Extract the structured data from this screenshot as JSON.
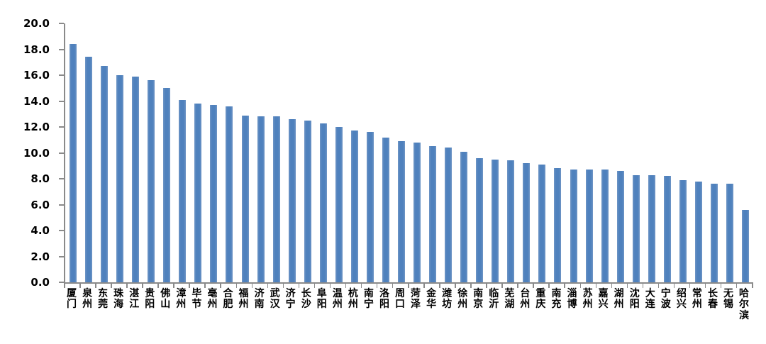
{
  "chart_data": {
    "type": "bar",
    "title": "",
    "xlabel": "",
    "ylabel": "",
    "categories": [
      "厦门",
      "泉州",
      "东莞",
      "珠海",
      "湛江",
      "贵阳",
      "佛山",
      "漳州",
      "毕节",
      "亳州",
      "合肥",
      "福州",
      "济南",
      "武汉",
      "济宁",
      "长沙",
      "阜阳",
      "温州",
      "杭州",
      "南宁",
      "洛阳",
      "周口",
      "菏泽",
      "金华",
      "潍坊",
      "徐州",
      "南京",
      "临沂",
      "芜湖",
      "台州",
      "重庆",
      "南充",
      "淄博",
      "苏州",
      "嘉兴",
      "湖州",
      "沈阳",
      "大连",
      "宁波",
      "绍兴",
      "常州",
      "长春",
      "无锡",
      "哈尔滨"
    ],
    "values": [
      18.4,
      17.4,
      16.7,
      16.0,
      15.9,
      15.6,
      15.0,
      14.1,
      13.8,
      13.7,
      13.6,
      12.9,
      12.8,
      12.8,
      12.6,
      12.5,
      12.3,
      12.0,
      11.7,
      11.6,
      11.2,
      10.9,
      10.8,
      10.5,
      10.4,
      10.1,
      9.6,
      9.5,
      9.4,
      9.2,
      9.1,
      8.8,
      8.7,
      8.7,
      8.7,
      8.6,
      8.3,
      8.3,
      8.2,
      7.9,
      7.8,
      7.6,
      7.6,
      5.6
    ],
    "ylim": [
      0,
      20
    ],
    "ytick_step": 2,
    "ytick_label_decimals": 1,
    "grid": false,
    "legend": "none",
    "bar_color": "#4F81BD",
    "axis_color": "#8A8A8A",
    "text_color": "#000000",
    "background_color": "#FFFFFF",
    "x_label_orientation": "vertical"
  }
}
